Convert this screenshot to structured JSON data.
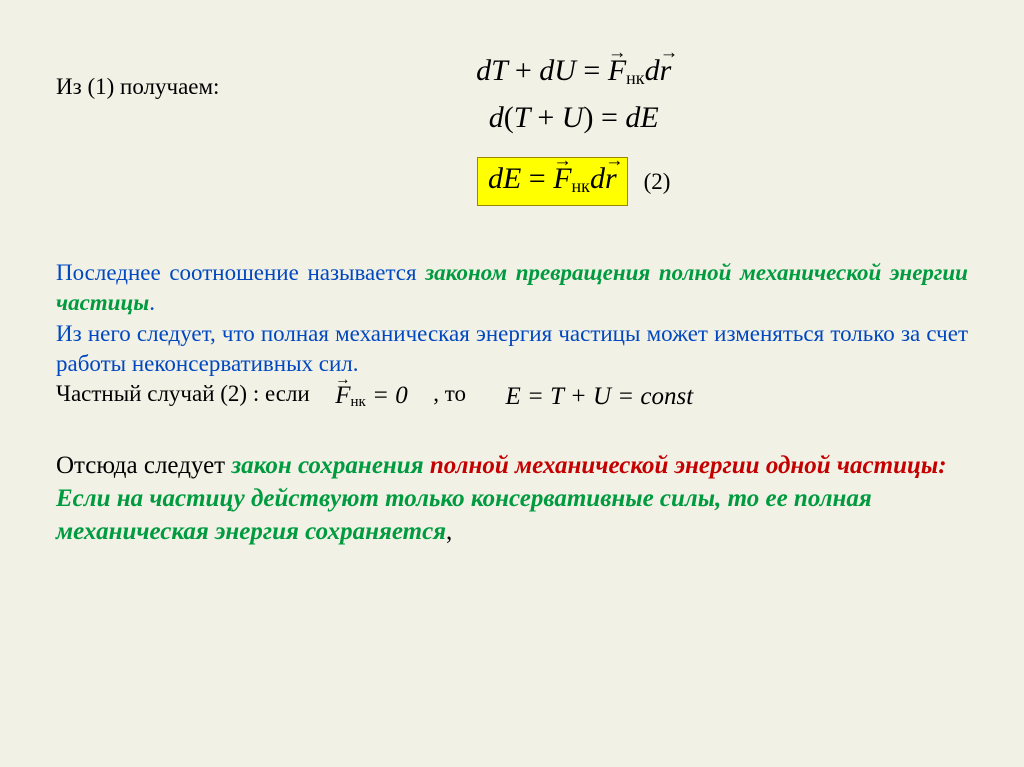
{
  "colors": {
    "background": "#f1f1e6",
    "highlight_bg": "#ffff00",
    "highlight_border": "#9c8800",
    "text_black": "#000000",
    "text_blue": "#0047c0",
    "text_green": "#009a3f",
    "text_red": "#c40000"
  },
  "fonts": {
    "body_family": "Times New Roman",
    "math_family": "Cambria Math",
    "body_size_pt": 17,
    "math_size_pt": 22,
    "block2_size_pt": 19
  },
  "intro_label": "Из (1)  получаем:",
  "equations": {
    "line1": {
      "latex": "dT + dU = \\vec{F}_{\\text{нк}} d\\vec{r}"
    },
    "line2": {
      "latex": "d(T + U) = dE"
    },
    "line3": {
      "latex": "dE = \\vec{F}_{\\text{нк}} d\\vec{r}",
      "highlighted": true
    },
    "line3_number": "(2)",
    "inline_F_zero": {
      "latex": "\\vec{F}_{\\text{нк}} = 0"
    },
    "inline_E_const": {
      "latex": "E = T + U = const"
    }
  },
  "paragraph1": {
    "p1_lead": "Последнее соотношение называется ",
    "p1_law": "законом превращения полной механической энергии частицы",
    "p1_dot": ".",
    "p2_blue": "Из него следует, что полная механическая энергия частицы может изменяться только за счет работы  неконсервативных  сил.",
    "p3_before": "Частный случай  (2) : если",
    "p3_mid": " , то"
  },
  "paragraph2": {
    "lead": "Отсюда следует ",
    "green1": "закон сохранения ",
    "red1": "полной механической энергии одной частицы:",
    "green2": "Если на частицу действуют только консервативные силы, то ее полная механическая энергия сохраняется",
    "trail_comma": ","
  }
}
